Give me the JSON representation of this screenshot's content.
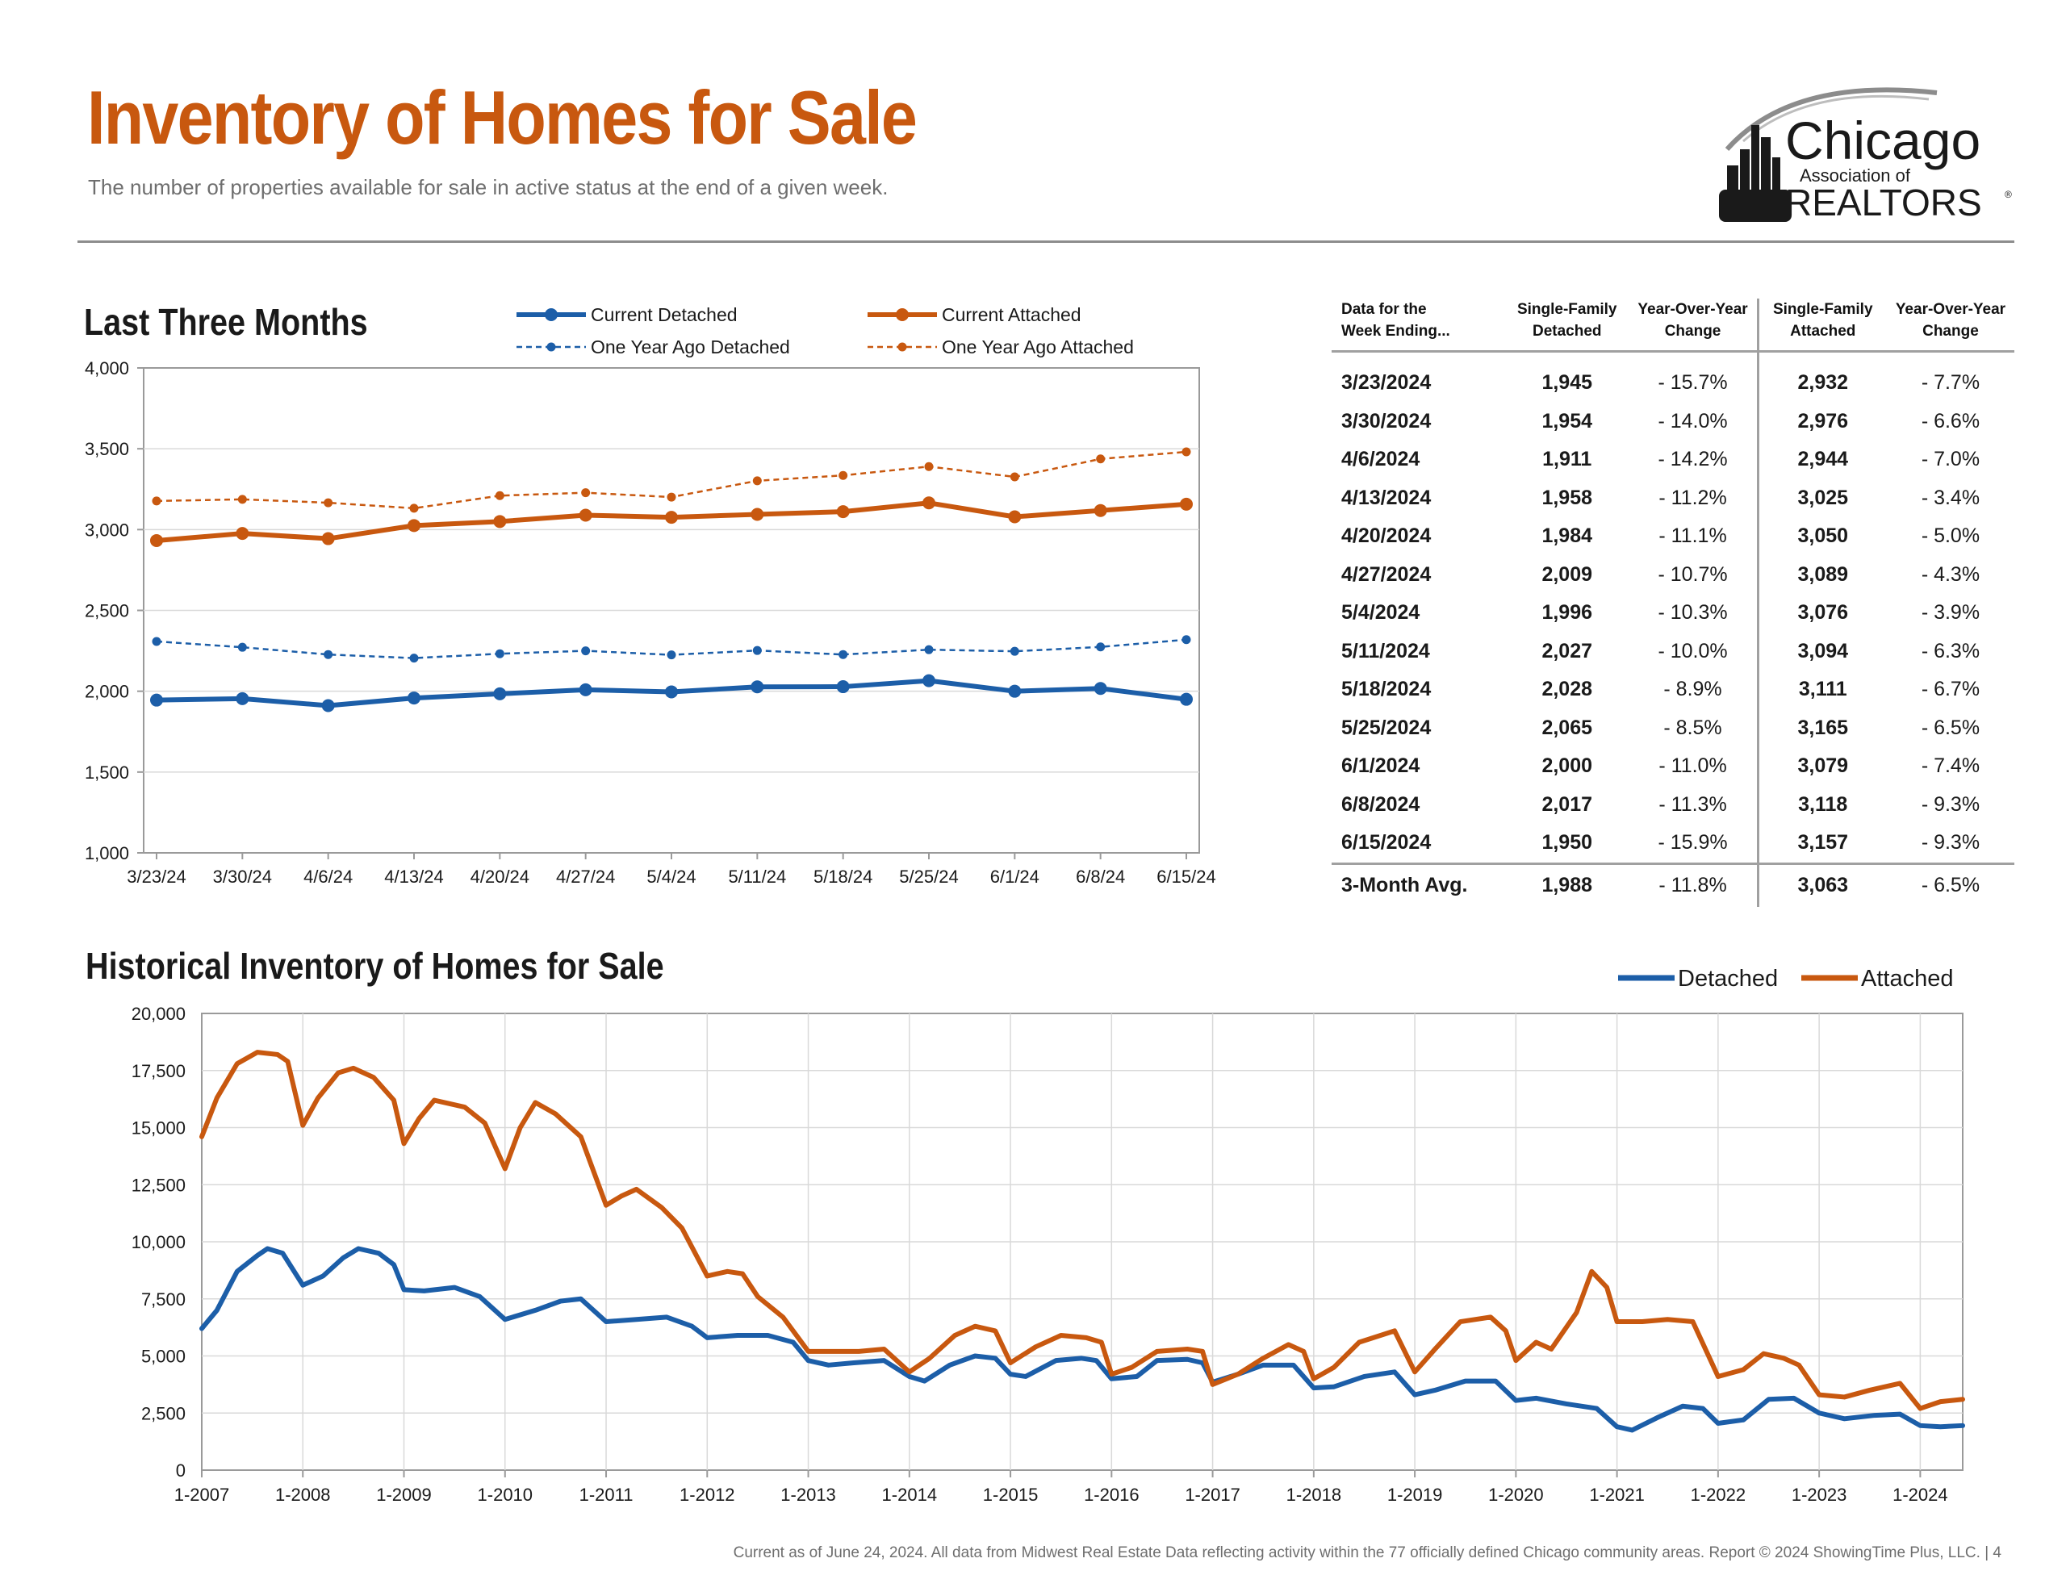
{
  "header": {
    "title": "Inventory of Homes for Sale",
    "subtitle": "The number of properties available for sale in active status at the end of a given week."
  },
  "logo": {
    "name": "chicago-association-of-realtors-logo",
    "line1": "Chicago",
    "line2": "Association of",
    "line3": "REALTORS",
    "mark": "®"
  },
  "colors": {
    "detached": "#1c5ea8",
    "attached": "#c8580f",
    "title_orange": "#c8580f",
    "grid": "#d9d9d9"
  },
  "recent": {
    "title": "Last Three Months"
  },
  "historical": {
    "title": "Historical Inventory of Homes for Sale"
  },
  "table": {
    "headers": [
      [
        "Data for the",
        "Week Ending..."
      ],
      [
        "Single-Family",
        "Detached"
      ],
      [
        "Year-Over-Year",
        "Change"
      ],
      [
        "Single-Family",
        "Attached"
      ],
      [
        "Year-Over-Year",
        "Change"
      ]
    ],
    "rows": [
      [
        "3/23/2024",
        "1,945",
        "- 15.7%",
        "2,932",
        "- 7.7%"
      ],
      [
        "3/30/2024",
        "1,954",
        "- 14.0%",
        "2,976",
        "- 6.6%"
      ],
      [
        "4/6/2024",
        "1,911",
        "- 14.2%",
        "2,944",
        "- 7.0%"
      ],
      [
        "4/13/2024",
        "1,958",
        "- 11.2%",
        "3,025",
        "- 3.4%"
      ],
      [
        "4/20/2024",
        "1,984",
        "- 11.1%",
        "3,050",
        "- 5.0%"
      ],
      [
        "4/27/2024",
        "2,009",
        "- 10.7%",
        "3,089",
        "- 4.3%"
      ],
      [
        "5/4/2024",
        "1,996",
        "- 10.3%",
        "3,076",
        "- 3.9%"
      ],
      [
        "5/11/2024",
        "2,027",
        "- 10.0%",
        "3,094",
        "- 6.3%"
      ],
      [
        "5/18/2024",
        "2,028",
        "- 8.9%",
        "3,111",
        "- 6.7%"
      ],
      [
        "5/25/2024",
        "2,065",
        "- 8.5%",
        "3,165",
        "- 6.5%"
      ],
      [
        "6/1/2024",
        "2,000",
        "- 11.0%",
        "3,079",
        "- 7.4%"
      ],
      [
        "6/8/2024",
        "2,017",
        "- 11.3%",
        "3,118",
        "- 9.3%"
      ],
      [
        "6/15/2024",
        "1,950",
        "- 15.9%",
        "3,157",
        "- 9.3%"
      ]
    ],
    "average": [
      "3-Month Avg.",
      "1,988",
      "- 11.8%",
      "3,063",
      "- 6.5%"
    ]
  },
  "footer": {
    "note": "Current as of June 24, 2024.  All data from Midwest Real Estate Data reflecting activity within the 77 officially defined Chicago community areas. Report © 2024 ShowingTime Plus, LLC.  |  4"
  },
  "chart_data": [
    {
      "type": "line",
      "categories": [
        "3/23/24",
        "3/30/24",
        "4/6/24",
        "4/13/24",
        "4/20/24",
        "4/27/24",
        "5/4/24",
        "5/11/24",
        "5/18/24",
        "5/25/24",
        "6/1/24",
        "6/8/24",
        "6/15/24"
      ],
      "ylim": [
        1000,
        4000
      ],
      "yticks": [
        1000,
        1500,
        2000,
        2500,
        3000,
        3500,
        4000
      ],
      "ytick_labels": [
        "1,000",
        "1,500",
        "2,000",
        "2,500",
        "3,000",
        "3,500",
        "4,000"
      ],
      "grid": true,
      "legend": "top",
      "series": [
        {
          "name": "Current Detached",
          "color": "#1c5ea8",
          "style": "solid",
          "values": [
            1945,
            1954,
            1911,
            1958,
            1984,
            2009,
            1996,
            2027,
            2028,
            2065,
            2000,
            2017,
            1950
          ]
        },
        {
          "name": "Current Attached",
          "color": "#c8580f",
          "style": "solid",
          "values": [
            2932,
            2976,
            2944,
            3025,
            3050,
            3089,
            3076,
            3094,
            3111,
            3165,
            3079,
            3118,
            3157
          ]
        },
        {
          "name": "One Year Ago Detached",
          "color": "#1c5ea8",
          "style": "dashed",
          "values": [
            2308,
            2272,
            2227,
            2205,
            2232,
            2250,
            2225,
            2252,
            2227,
            2257,
            2247,
            2274,
            2319
          ]
        },
        {
          "name": "One Year Ago Attached",
          "color": "#c8580f",
          "style": "dashed",
          "values": [
            3177,
            3187,
            3166,
            3132,
            3210,
            3228,
            3201,
            3302,
            3335,
            3390,
            3326,
            3437,
            3481
          ]
        }
      ]
    },
    {
      "type": "line",
      "xlim": [
        2007.0,
        2024.42
      ],
      "xticks": [
        2007,
        2008,
        2009,
        2010,
        2011,
        2012,
        2013,
        2014,
        2015,
        2016,
        2017,
        2018,
        2019,
        2020,
        2021,
        2022,
        2023,
        2024
      ],
      "xtick_labels": [
        "1-2007",
        "1-2008",
        "1-2009",
        "1-2010",
        "1-2011",
        "1-2012",
        "1-2013",
        "1-2014",
        "1-2015",
        "1-2016",
        "1-2017",
        "1-2018",
        "1-2019",
        "1-2020",
        "1-2021",
        "1-2022",
        "1-2023",
        "1-2024"
      ],
      "ylim": [
        0,
        20000
      ],
      "yticks": [
        0,
        2500,
        5000,
        7500,
        10000,
        12500,
        15000,
        17500,
        20000
      ],
      "ytick_labels": [
        "0",
        "2,500",
        "5,000",
        "7,500",
        "10,000",
        "12,500",
        "15,000",
        "17,500",
        "20,000"
      ],
      "grid": true,
      "legend": "top-right",
      "series": [
        {
          "name": "Detached",
          "color": "#1c5ea8",
          "points": [
            [
              2007.0,
              6200
            ],
            [
              2007.15,
              7000
            ],
            [
              2007.35,
              8700
            ],
            [
              2007.55,
              9400
            ],
            [
              2007.65,
              9700
            ],
            [
              2007.8,
              9500
            ],
            [
              2008.0,
              8100
            ],
            [
              2008.2,
              8500
            ],
            [
              2008.4,
              9300
            ],
            [
              2008.55,
              9700
            ],
            [
              2008.75,
              9500
            ],
            [
              2008.9,
              9000
            ],
            [
              2009.0,
              7900
            ],
            [
              2009.2,
              7850
            ],
            [
              2009.5,
              8000
            ],
            [
              2009.75,
              7600
            ],
            [
              2010.0,
              6600
            ],
            [
              2010.3,
              7000
            ],
            [
              2010.55,
              7400
            ],
            [
              2010.75,
              7500
            ],
            [
              2011.0,
              6500
            ],
            [
              2011.3,
              6600
            ],
            [
              2011.6,
              6700
            ],
            [
              2011.85,
              6300
            ],
            [
              2012.0,
              5800
            ],
            [
              2012.3,
              5900
            ],
            [
              2012.6,
              5900
            ],
            [
              2012.85,
              5600
            ],
            [
              2013.0,
              4800
            ],
            [
              2013.2,
              4600
            ],
            [
              2013.45,
              4700
            ],
            [
              2013.75,
              4800
            ],
            [
              2014.0,
              4100
            ],
            [
              2014.15,
              3900
            ],
            [
              2014.4,
              4600
            ],
            [
              2014.65,
              5000
            ],
            [
              2014.85,
              4900
            ],
            [
              2015.0,
              4200
            ],
            [
              2015.15,
              4100
            ],
            [
              2015.45,
              4800
            ],
            [
              2015.7,
              4900
            ],
            [
              2015.85,
              4800
            ],
            [
              2016.0,
              4000
            ],
            [
              2016.25,
              4100
            ],
            [
              2016.45,
              4800
            ],
            [
              2016.75,
              4850
            ],
            [
              2016.9,
              4700
            ],
            [
              2017.0,
              3850
            ],
            [
              2017.25,
              4200
            ],
            [
              2017.5,
              4600
            ],
            [
              2017.8,
              4600
            ],
            [
              2018.0,
              3600
            ],
            [
              2018.2,
              3650
            ],
            [
              2018.5,
              4100
            ],
            [
              2018.8,
              4300
            ],
            [
              2019.0,
              3300
            ],
            [
              2019.2,
              3500
            ],
            [
              2019.5,
              3900
            ],
            [
              2019.8,
              3900
            ],
            [
              2020.0,
              3050
            ],
            [
              2020.2,
              3150
            ],
            [
              2020.5,
              2900
            ],
            [
              2020.8,
              2700
            ],
            [
              2021.0,
              1900
            ],
            [
              2021.15,
              1750
            ],
            [
              2021.4,
              2300
            ],
            [
              2021.65,
              2800
            ],
            [
              2021.85,
              2700
            ],
            [
              2022.0,
              2050
            ],
            [
              2022.25,
              2200
            ],
            [
              2022.5,
              3100
            ],
            [
              2022.75,
              3150
            ],
            [
              2023.0,
              2500
            ],
            [
              2023.25,
              2250
            ],
            [
              2023.55,
              2400
            ],
            [
              2023.8,
              2450
            ],
            [
              2024.0,
              1950
            ],
            [
              2024.2,
              1900
            ],
            [
              2024.42,
              1950
            ]
          ]
        },
        {
          "name": "Attached",
          "color": "#c8580f",
          "points": [
            [
              2007.0,
              14600
            ],
            [
              2007.15,
              16300
            ],
            [
              2007.35,
              17800
            ],
            [
              2007.55,
              18300
            ],
            [
              2007.75,
              18200
            ],
            [
              2007.85,
              17900
            ],
            [
              2008.0,
              15100
            ],
            [
              2008.15,
              16300
            ],
            [
              2008.35,
              17400
            ],
            [
              2008.5,
              17600
            ],
            [
              2008.7,
              17200
            ],
            [
              2008.9,
              16200
            ],
            [
              2009.0,
              14300
            ],
            [
              2009.15,
              15400
            ],
            [
              2009.3,
              16200
            ],
            [
              2009.6,
              15900
            ],
            [
              2009.8,
              15200
            ],
            [
              2010.0,
              13200
            ],
            [
              2010.15,
              15000
            ],
            [
              2010.3,
              16100
            ],
            [
              2010.5,
              15600
            ],
            [
              2010.75,
              14600
            ],
            [
              2011.0,
              11600
            ],
            [
              2011.15,
              12000
            ],
            [
              2011.3,
              12300
            ],
            [
              2011.55,
              11500
            ],
            [
              2011.75,
              10600
            ],
            [
              2012.0,
              8500
            ],
            [
              2012.2,
              8700
            ],
            [
              2012.35,
              8600
            ],
            [
              2012.5,
              7600
            ],
            [
              2012.75,
              6700
            ],
            [
              2013.0,
              5200
            ],
            [
              2013.2,
              5200
            ],
            [
              2013.5,
              5200
            ],
            [
              2013.75,
              5300
            ],
            [
              2014.0,
              4300
            ],
            [
              2014.2,
              4900
            ],
            [
              2014.45,
              5900
            ],
            [
              2014.65,
              6300
            ],
            [
              2014.85,
              6100
            ],
            [
              2015.0,
              4700
            ],
            [
              2015.25,
              5400
            ],
            [
              2015.5,
              5900
            ],
            [
              2015.75,
              5800
            ],
            [
              2015.9,
              5600
            ],
            [
              2016.0,
              4200
            ],
            [
              2016.2,
              4500
            ],
            [
              2016.45,
              5200
            ],
            [
              2016.75,
              5300
            ],
            [
              2016.9,
              5200
            ],
            [
              2017.0,
              3750
            ],
            [
              2017.25,
              4200
            ],
            [
              2017.5,
              4900
            ],
            [
              2017.75,
              5500
            ],
            [
              2017.9,
              5200
            ],
            [
              2018.0,
              4000
            ],
            [
              2018.2,
              4500
            ],
            [
              2018.45,
              5600
            ],
            [
              2018.8,
              6100
            ],
            [
              2019.0,
              4300
            ],
            [
              2019.2,
              5300
            ],
            [
              2019.45,
              6500
            ],
            [
              2019.75,
              6700
            ],
            [
              2019.9,
              6100
            ],
            [
              2020.0,
              4800
            ],
            [
              2020.2,
              5600
            ],
            [
              2020.35,
              5300
            ],
            [
              2020.6,
              6900
            ],
            [
              2020.75,
              8700
            ],
            [
              2020.9,
              8000
            ],
            [
              2021.0,
              6500
            ],
            [
              2021.25,
              6500
            ],
            [
              2021.5,
              6600
            ],
            [
              2021.75,
              6500
            ],
            [
              2022.0,
              4100
            ],
            [
              2022.25,
              4400
            ],
            [
              2022.45,
              5100
            ],
            [
              2022.65,
              4900
            ],
            [
              2022.8,
              4600
            ],
            [
              2023.0,
              3300
            ],
            [
              2023.25,
              3200
            ],
            [
              2023.5,
              3500
            ],
            [
              2023.8,
              3800
            ],
            [
              2024.0,
              2700
            ],
            [
              2024.2,
              3000
            ],
            [
              2024.42,
              3100
            ]
          ]
        }
      ]
    }
  ]
}
